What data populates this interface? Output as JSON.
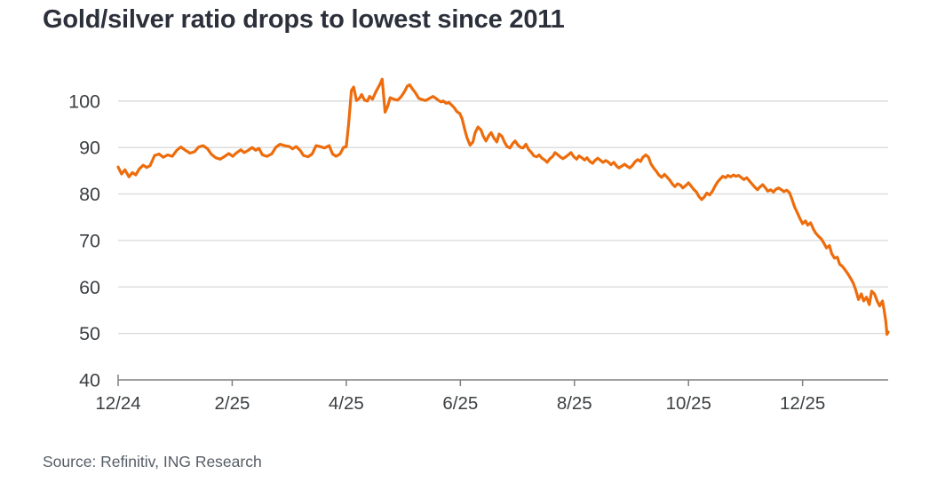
{
  "title": "Gold/silver ratio drops to lowest since 2011",
  "source": "Source: Refinitiv, ING Research",
  "colors": {
    "line": "#ED6C0C",
    "title": "#2B303B",
    "grid": "#D9D9D9",
    "axis": "#808080",
    "tick_label": "#3C4043",
    "source": "#565D66",
    "background": "#FFFFFF"
  },
  "chart_data": {
    "type": "line",
    "title": "Gold/silver ratio drops to lowest since 2011",
    "xlabel": "",
    "ylabel": "",
    "x_unit": "months since 12/2024",
    "xlim": [
      0,
      13.5
    ],
    "ylim": [
      40,
      105.5
    ],
    "grid": "horizontal",
    "legend": "none",
    "y_ticks": [
      40,
      50,
      60,
      70,
      80,
      90,
      100
    ],
    "x_ticks": [
      {
        "m": 0,
        "label": "12/24"
      },
      {
        "m": 2,
        "label": "2/25"
      },
      {
        "m": 4,
        "label": "4/25"
      },
      {
        "m": 6,
        "label": "6/25"
      },
      {
        "m": 8,
        "label": "8/25"
      },
      {
        "m": 10,
        "label": "10/25"
      },
      {
        "m": 12,
        "label": "12/25"
      }
    ],
    "series": [
      {
        "name": "Gold/silver ratio",
        "color": "#ED6C0C",
        "points": [
          [
            0,
            85.8
          ],
          [
            0.06,
            84.3
          ],
          [
            0.12,
            85.2
          ],
          [
            0.19,
            83.7
          ],
          [
            0.25,
            84.6
          ],
          [
            0.31,
            84.1
          ],
          [
            0.37,
            85.4
          ],
          [
            0.44,
            86.2
          ],
          [
            0.5,
            85.7
          ],
          [
            0.56,
            86.1
          ],
          [
            0.64,
            88.3
          ],
          [
            0.72,
            88.6
          ],
          [
            0.79,
            87.9
          ],
          [
            0.87,
            88.4
          ],
          [
            0.95,
            88.1
          ],
          [
            1.03,
            89.4
          ],
          [
            1.1,
            90.1
          ],
          [
            1.18,
            89.4
          ],
          [
            1.26,
            88.8
          ],
          [
            1.34,
            89.1
          ],
          [
            1.41,
            90.1
          ],
          [
            1.49,
            90.4
          ],
          [
            1.57,
            89.7
          ],
          [
            1.63,
            88.6
          ],
          [
            1.71,
            87.8
          ],
          [
            1.79,
            87.5
          ],
          [
            1.87,
            88.1
          ],
          [
            1.94,
            88.7
          ],
          [
            2.01,
            88.1
          ],
          [
            2.07,
            88.8
          ],
          [
            2.15,
            89.5
          ],
          [
            2.21,
            88.9
          ],
          [
            2.27,
            89.3
          ],
          [
            2.35,
            90.0
          ],
          [
            2.41,
            89.4
          ],
          [
            2.47,
            89.8
          ],
          [
            2.53,
            88.4
          ],
          [
            2.61,
            88.1
          ],
          [
            2.69,
            88.6
          ],
          [
            2.77,
            90.1
          ],
          [
            2.84,
            90.7
          ],
          [
            2.92,
            90.4
          ],
          [
            3.0,
            90.2
          ],
          [
            3.06,
            89.7
          ],
          [
            3.12,
            90.2
          ],
          [
            3.19,
            89.4
          ],
          [
            3.25,
            88.3
          ],
          [
            3.33,
            88.0
          ],
          [
            3.4,
            88.6
          ],
          [
            3.47,
            90.4
          ],
          [
            3.54,
            90.2
          ],
          [
            3.62,
            89.9
          ],
          [
            3.7,
            90.4
          ],
          [
            3.76,
            88.6
          ],
          [
            3.82,
            88.1
          ],
          [
            3.89,
            88.6
          ],
          [
            3.95,
            90.0
          ],
          [
            4.0,
            90.2
          ],
          [
            4.04,
            95.0
          ],
          [
            4.09,
            102.3
          ],
          [
            4.13,
            103.0
          ],
          [
            4.18,
            100.1
          ],
          [
            4.23,
            100.6
          ],
          [
            4.27,
            101.4
          ],
          [
            4.32,
            100.2
          ],
          [
            4.37,
            100.0
          ],
          [
            4.41,
            101.0
          ],
          [
            4.46,
            100.4
          ],
          [
            4.52,
            102.0
          ],
          [
            4.59,
            103.6
          ],
          [
            4.63,
            104.7
          ],
          [
            4.68,
            97.6
          ],
          [
            4.73,
            99.0
          ],
          [
            4.77,
            100.7
          ],
          [
            4.83,
            100.4
          ],
          [
            4.9,
            100.2
          ],
          [
            4.96,
            100.9
          ],
          [
            5.02,
            102.0
          ],
          [
            5.07,
            103.2
          ],
          [
            5.11,
            103.5
          ],
          [
            5.16,
            102.6
          ],
          [
            5.21,
            101.8
          ],
          [
            5.27,
            100.6
          ],
          [
            5.33,
            100.3
          ],
          [
            5.39,
            100.1
          ],
          [
            5.46,
            100.6
          ],
          [
            5.52,
            101.0
          ],
          [
            5.57,
            100.6
          ],
          [
            5.61,
            100.2
          ],
          [
            5.66,
            99.8
          ],
          [
            5.7,
            100.0
          ],
          [
            5.75,
            99.5
          ],
          [
            5.8,
            99.7
          ],
          [
            5.84,
            99.2
          ],
          [
            5.89,
            98.6
          ],
          [
            5.94,
            97.7
          ],
          [
            5.99,
            97.3
          ],
          [
            6.03,
            96.2
          ],
          [
            6.08,
            93.7
          ],
          [
            6.12,
            92.0
          ],
          [
            6.17,
            90.5
          ],
          [
            6.22,
            91.2
          ],
          [
            6.26,
            93.2
          ],
          [
            6.31,
            94.4
          ],
          [
            6.36,
            93.8
          ],
          [
            6.4,
            92.5
          ],
          [
            6.45,
            91.4
          ],
          [
            6.5,
            92.6
          ],
          [
            6.54,
            93.2
          ],
          [
            6.59,
            92.0
          ],
          [
            6.64,
            91.2
          ],
          [
            6.68,
            92.9
          ],
          [
            6.73,
            92.4
          ],
          [
            6.78,
            91.0
          ],
          [
            6.82,
            90.2
          ],
          [
            6.87,
            89.9
          ],
          [
            6.92,
            90.9
          ],
          [
            6.96,
            91.4
          ],
          [
            7.01,
            90.5
          ],
          [
            7.06,
            90.0
          ],
          [
            7.1,
            89.9
          ],
          [
            7.15,
            90.7
          ],
          [
            7.2,
            89.5
          ],
          [
            7.24,
            89.0
          ],
          [
            7.29,
            88.2
          ],
          [
            7.34,
            88.0
          ],
          [
            7.38,
            88.4
          ],
          [
            7.43,
            87.7
          ],
          [
            7.48,
            87.3
          ],
          [
            7.52,
            86.8
          ],
          [
            7.57,
            87.6
          ],
          [
            7.62,
            88.1
          ],
          [
            7.66,
            88.9
          ],
          [
            7.71,
            88.4
          ],
          [
            7.76,
            87.9
          ],
          [
            7.8,
            87.6
          ],
          [
            7.85,
            88.0
          ],
          [
            7.9,
            88.5
          ],
          [
            7.94,
            88.9
          ],
          [
            7.99,
            88.0
          ],
          [
            8.04,
            87.5
          ],
          [
            8.08,
            88.2
          ],
          [
            8.13,
            87.8
          ],
          [
            8.18,
            87.3
          ],
          [
            8.22,
            87.8
          ],
          [
            8.27,
            87.0
          ],
          [
            8.32,
            86.6
          ],
          [
            8.36,
            87.2
          ],
          [
            8.41,
            87.7
          ],
          [
            8.46,
            87.2
          ],
          [
            8.5,
            86.8
          ],
          [
            8.55,
            87.2
          ],
          [
            8.6,
            86.8
          ],
          [
            8.64,
            86.3
          ],
          [
            8.69,
            86.8
          ],
          [
            8.74,
            86.0
          ],
          [
            8.78,
            85.6
          ],
          [
            8.83,
            86.0
          ],
          [
            8.88,
            86.4
          ],
          [
            8.92,
            86.0
          ],
          [
            8.97,
            85.6
          ],
          [
            9.02,
            86.2
          ],
          [
            9.06,
            86.9
          ],
          [
            9.11,
            87.4
          ],
          [
            9.16,
            87.0
          ],
          [
            9.2,
            87.9
          ],
          [
            9.25,
            88.4
          ],
          [
            9.3,
            87.9
          ],
          [
            9.34,
            86.5
          ],
          [
            9.39,
            85.6
          ],
          [
            9.44,
            84.8
          ],
          [
            9.48,
            84.1
          ],
          [
            9.53,
            83.6
          ],
          [
            9.58,
            84.2
          ],
          [
            9.62,
            83.7
          ],
          [
            9.67,
            83.0
          ],
          [
            9.72,
            82.1
          ],
          [
            9.76,
            81.6
          ],
          [
            9.81,
            82.2
          ],
          [
            9.86,
            81.9
          ],
          [
            9.9,
            81.3
          ],
          [
            9.95,
            81.8
          ],
          [
            10.0,
            82.4
          ],
          [
            10.04,
            81.8
          ],
          [
            10.09,
            81.0
          ],
          [
            10.14,
            80.4
          ],
          [
            10.18,
            79.5
          ],
          [
            10.23,
            78.8
          ],
          [
            10.28,
            79.4
          ],
          [
            10.32,
            80.2
          ],
          [
            10.37,
            79.8
          ],
          [
            10.42,
            80.6
          ],
          [
            10.46,
            81.6
          ],
          [
            10.51,
            82.6
          ],
          [
            10.56,
            83.3
          ],
          [
            10.6,
            83.8
          ],
          [
            10.65,
            83.5
          ],
          [
            10.69,
            84.0
          ],
          [
            10.74,
            83.7
          ],
          [
            10.79,
            84.1
          ],
          [
            10.83,
            83.8
          ],
          [
            10.88,
            84.0
          ],
          [
            10.93,
            83.5
          ],
          [
            10.97,
            83.1
          ],
          [
            11.02,
            83.5
          ],
          [
            11.07,
            82.8
          ],
          [
            11.11,
            82.2
          ],
          [
            11.16,
            81.5
          ],
          [
            11.21,
            80.9
          ],
          [
            11.25,
            81.5
          ],
          [
            11.3,
            82.0
          ],
          [
            11.35,
            81.3
          ],
          [
            11.39,
            80.6
          ],
          [
            11.44,
            80.9
          ],
          [
            11.49,
            80.4
          ],
          [
            11.53,
            81.0
          ],
          [
            11.58,
            81.3
          ],
          [
            11.63,
            80.9
          ],
          [
            11.67,
            80.5
          ],
          [
            11.72,
            80.8
          ],
          [
            11.77,
            80.3
          ],
          [
            11.81,
            79.0
          ],
          [
            11.86,
            77.2
          ],
          [
            11.91,
            75.9
          ],
          [
            11.95,
            74.8
          ],
          [
            12.0,
            73.6
          ],
          [
            12.05,
            74.2
          ],
          [
            12.09,
            73.3
          ],
          [
            12.14,
            73.8
          ],
          [
            12.19,
            72.4
          ],
          [
            12.23,
            71.6
          ],
          [
            12.28,
            70.9
          ],
          [
            12.33,
            70.3
          ],
          [
            12.37,
            69.5
          ],
          [
            12.42,
            68.4
          ],
          [
            12.47,
            68.9
          ],
          [
            12.51,
            67.2
          ],
          [
            12.56,
            66.2
          ],
          [
            12.61,
            66.4
          ],
          [
            12.65,
            64.9
          ],
          [
            12.7,
            64.4
          ],
          [
            12.75,
            63.6
          ],
          [
            12.79,
            62.9
          ],
          [
            12.84,
            61.9
          ],
          [
            12.89,
            60.8
          ],
          [
            12.93,
            59.4
          ],
          [
            12.98,
            57.3
          ],
          [
            13.03,
            58.5
          ],
          [
            13.07,
            57.0
          ],
          [
            13.12,
            57.8
          ],
          [
            13.17,
            56.2
          ],
          [
            13.21,
            59.1
          ],
          [
            13.26,
            58.5
          ],
          [
            13.31,
            56.9
          ],
          [
            13.35,
            55.9
          ],
          [
            13.4,
            57.0
          ],
          [
            13.43,
            55.0
          ],
          [
            13.46,
            52.5
          ],
          [
            13.48,
            49.8
          ],
          [
            13.5,
            50.3
          ]
        ]
      }
    ]
  }
}
